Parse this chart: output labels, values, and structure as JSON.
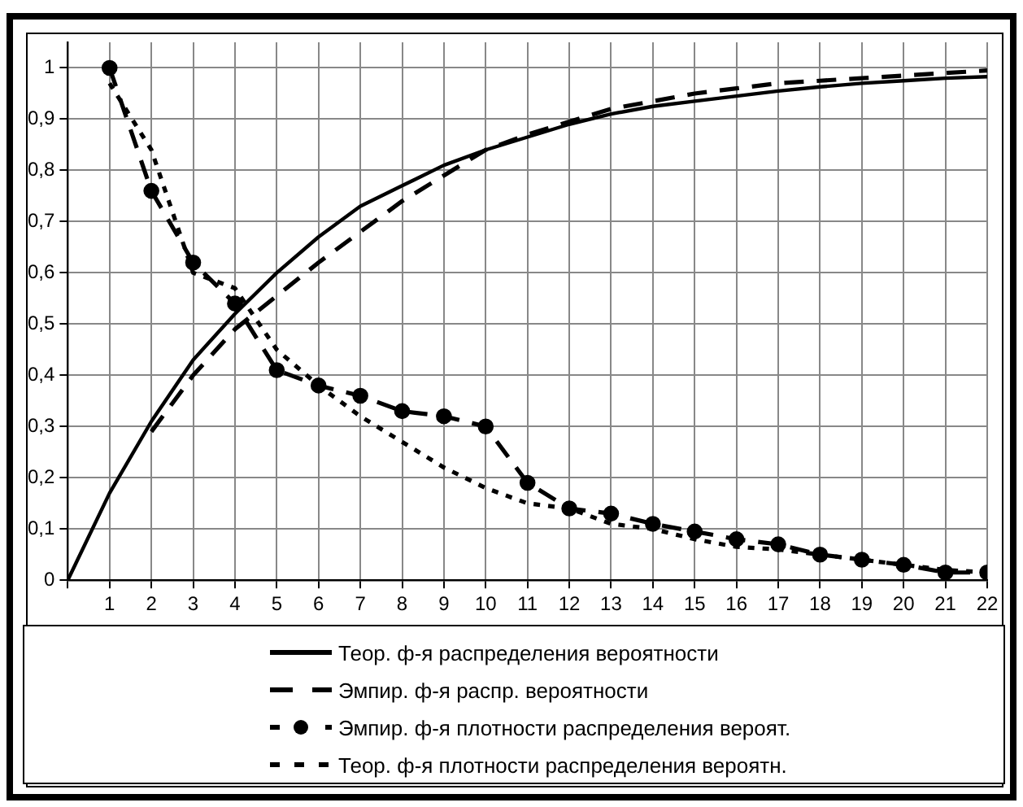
{
  "chart_data": {
    "type": "line",
    "x": [
      0,
      1,
      2,
      3,
      4,
      5,
      6,
      7,
      8,
      9,
      10,
      11,
      12,
      13,
      14,
      15,
      16,
      17,
      18,
      19,
      20,
      21,
      22
    ],
    "series": [
      {
        "name": "Теор. ф-я распределения вероятности",
        "color": "#000000",
        "line_style": "solid",
        "marker": "none",
        "values": [
          0,
          0.17,
          0.31,
          0.43,
          0.52,
          0.6,
          0.67,
          0.73,
          0.77,
          0.81,
          0.84,
          0.865,
          0.89,
          0.91,
          0.925,
          0.935,
          0.945,
          0.955,
          0.963,
          0.97,
          0.975,
          0.98,
          0.983
        ]
      },
      {
        "name": "Эмпир. ф-я распр. вероятности",
        "color": "#000000",
        "line_style": "dashed",
        "marker": "none",
        "values": [
          null,
          null,
          0.29,
          0.4,
          0.49,
          0.555,
          0.62,
          0.68,
          0.74,
          0.79,
          0.84,
          0.87,
          0.895,
          0.92,
          0.935,
          0.95,
          0.96,
          0.97,
          0.975,
          0.98,
          0.985,
          0.99,
          0.995
        ]
      },
      {
        "name": "Эмпир. ф-я плотности распределения вероят.",
        "color": "#000000",
        "line_style": "dashed",
        "marker": "circle",
        "values": [
          null,
          1,
          0.76,
          0.62,
          0.54,
          0.41,
          0.38,
          0.36,
          0.33,
          0.32,
          0.3,
          0.19,
          0.14,
          0.13,
          0.11,
          0.095,
          0.08,
          0.07,
          0.05,
          0.04,
          0.03,
          0.015,
          0.015
        ]
      },
      {
        "name": "Теор. ф-я плотности распределения вероятн.",
        "color": "#000000",
        "line_style": "dotted",
        "marker": "none",
        "values": [
          null,
          0.97,
          0.84,
          0.6,
          0.57,
          0.45,
          0.38,
          0.32,
          0.27,
          0.22,
          0.18,
          0.15,
          0.14,
          0.11,
          0.1,
          0.08,
          0.065,
          0.06,
          0.05,
          0.04,
          0.03,
          0.02,
          0.015
        ]
      }
    ],
    "xlim": [
      0,
      22
    ],
    "xticks": [
      {
        "value": 0,
        "label": null
      },
      1,
      2,
      3,
      4,
      5,
      6,
      7,
      8,
      9,
      10,
      11,
      12,
      13,
      14,
      15,
      16,
      17,
      18,
      19,
      20,
      21,
      22
    ],
    "ylim": [
      0,
      1.05
    ],
    "yticks": [
      0,
      {
        "value": 0.1,
        "label": "0,1"
      },
      {
        "value": 0.2,
        "label": "0,2"
      },
      {
        "value": 0.3,
        "label": "0,3"
      },
      {
        "value": 0.4,
        "label": "0,4"
      },
      {
        "value": 0.5,
        "label": "0,5"
      },
      {
        "value": 0.6,
        "label": "0,6"
      },
      {
        "value": 0.7,
        "label": "0,7"
      },
      {
        "value": 0.8,
        "label": "0,8"
      },
      {
        "value": 0.9,
        "label": "0,9"
      },
      1
    ],
    "grid": true,
    "legend": "bottom"
  }
}
